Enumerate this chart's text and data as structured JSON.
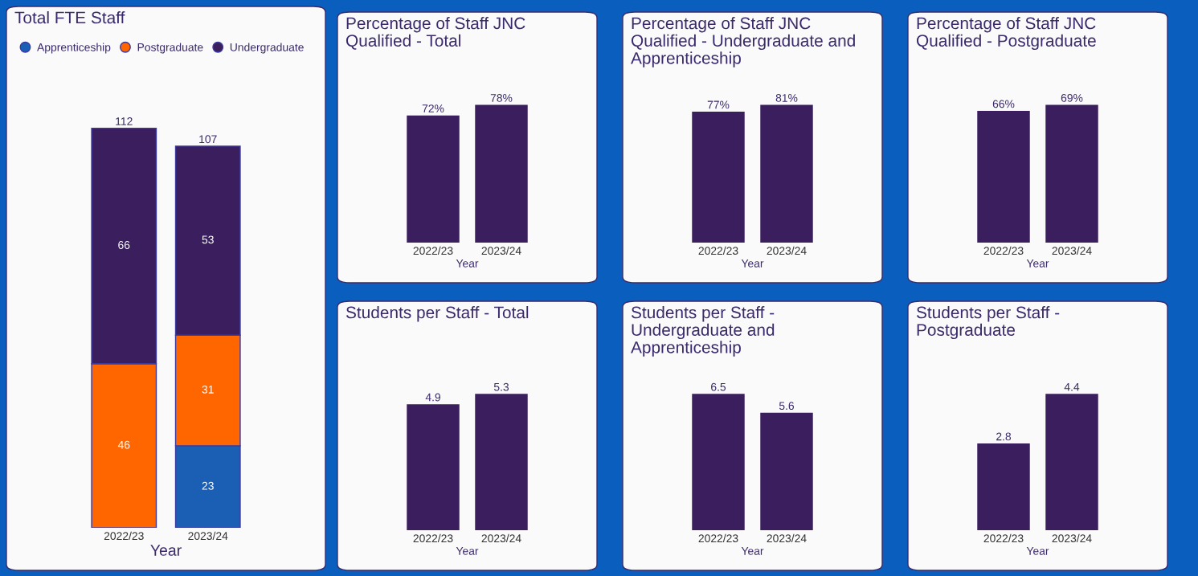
{
  "chart_data": [
    {
      "type": "bar",
      "title": "Total FTE Staff",
      "xlabel": "Year",
      "categories": [
        "2022/23",
        "2023/24"
      ],
      "stacked": true,
      "data_labels": true,
      "totals": [
        "112",
        "107"
      ],
      "legend": "top left",
      "tick_labels": "x",
      "series": [
        {
          "name": "Apprenticeship",
          "color": "#1a5fb4",
          "values": [
            null,
            23
          ]
        },
        {
          "name": "Postgraduate",
          "color": "#ff6600",
          "values": [
            46,
            31
          ]
        },
        {
          "name": "Undergraduate",
          "color": "#3b1e5e",
          "values": [
            66,
            53
          ]
        }
      ]
    },
    {
      "type": "bar",
      "title": "Percentage of Staff JNC Qualified - Total",
      "xlabel": "Year",
      "categories": [
        "2022/23",
        "2023/24"
      ],
      "color": "#3b1e5e",
      "values": [
        72,
        78
      ],
      "value_labels": [
        "72%",
        "78%"
      ],
      "tick_labels": "x"
    },
    {
      "type": "bar",
      "title": "Percentage of Staff JNC Qualified - Undergraduate and Apprenticeship",
      "xlabel": "Year",
      "categories": [
        "2022/23",
        "2023/24"
      ],
      "color": "#3b1e5e",
      "values": [
        77,
        81
      ],
      "value_labels": [
        "77%",
        "81%"
      ],
      "tick_labels": "x"
    },
    {
      "type": "bar",
      "title": "Percentage of Staff JNC Qualified - Postgraduate",
      "xlabel": "Year",
      "categories": [
        "2022/23",
        "2023/24"
      ],
      "color": "#3b1e5e",
      "values": [
        66,
        69
      ],
      "value_labels": [
        "66%",
        "69%"
      ],
      "tick_labels": "x"
    },
    {
      "type": "bar",
      "title": "Students per Staff - Total",
      "xlabel": "Year",
      "categories": [
        "2022/23",
        "2023/24"
      ],
      "color": "#3b1e5e",
      "values": [
        4.9,
        5.3
      ],
      "data_labels": true,
      "tick_labels": "x"
    },
    {
      "type": "bar",
      "title": "Students per Staff - Undergraduate and Apprenticeship",
      "xlabel": "Year",
      "categories": [
        "2022/23",
        "2023/24"
      ],
      "color": "#3b1e5e",
      "values": [
        6.5,
        5.6
      ],
      "data_labels": true,
      "tick_labels": "x"
    },
    {
      "type": "bar",
      "title": "Students per Staff - Postgraduate",
      "xlabel": "Year",
      "categories": [
        "2022/23",
        "2023/24"
      ],
      "color": "#3b1e5e",
      "values": [
        2.8,
        4.4
      ],
      "data_labels": true,
      "tick_labels": "x"
    }
  ]
}
